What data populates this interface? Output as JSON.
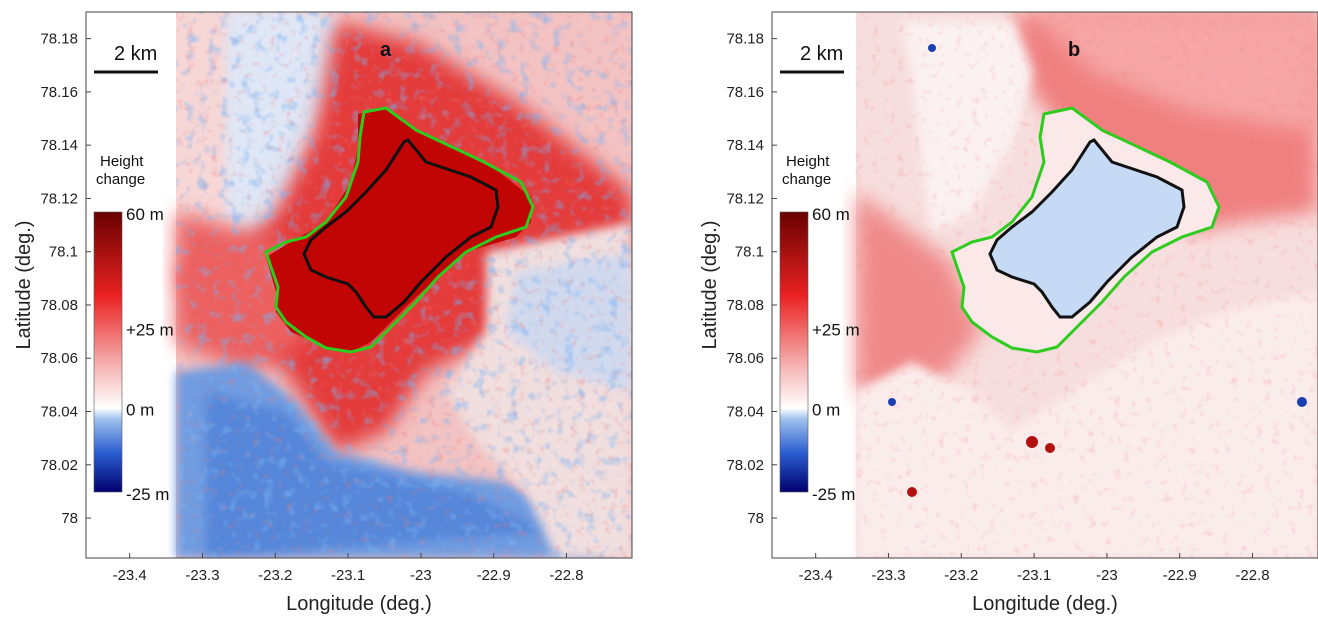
{
  "chart_data": [
    {
      "type": "heatmap",
      "panel": "a",
      "xlabel": "Longitude (deg.)",
      "ylabel": "Latitude (deg.)",
      "xticks": [
        -23.4,
        -23.3,
        -23.2,
        -23.1,
        -23.0,
        -22.9,
        -22.8
      ],
      "xtick_labels": [
        "-23.4",
        "-23.3",
        "-23.2",
        "-23.1",
        "-23",
        "-22.9",
        "-22.8"
      ],
      "yticks": [
        78.0,
        78.02,
        78.04,
        78.06,
        78.08,
        78.1,
        78.12,
        78.14,
        78.16,
        78.18
      ],
      "ytick_labels": [
        "78",
        "78.02",
        "78.04",
        "78.06",
        "78.08",
        "78.1",
        "78.12",
        "78.14",
        "78.16",
        "78.18"
      ],
      "xlim": [
        -23.46,
        -22.71
      ],
      "ylim": [
        77.985,
        78.19
      ],
      "scale_bar": "2 km",
      "colorbar": {
        "title_line1": "Height",
        "title_line2": "change",
        "range": [
          -25,
          60
        ],
        "labels": [
          {
            "value": 60,
            "text": "60 m"
          },
          {
            "value": 25,
            "text": "+25 m"
          },
          {
            "value": 0,
            "text": "0 m"
          },
          {
            "value": -25,
            "text": "-25 m"
          }
        ]
      },
      "outlines": [
        {
          "color": "#2ecc1f",
          "name": ""
        },
        {
          "color": "#111111",
          "name": ""
        }
      ]
    },
    {
      "type": "heatmap",
      "panel": "b",
      "xlabel": "Longitude (deg.)",
      "ylabel": "Latitude (deg.)",
      "xticks": [
        -23.4,
        -23.3,
        -23.2,
        -23.1,
        -23.0,
        -22.9,
        -22.8
      ],
      "xtick_labels": [
        "-23.4",
        "-23.3",
        "-23.2",
        "-23.1",
        "-23",
        "-22.9",
        "-22.8"
      ],
      "yticks": [
        78.0,
        78.02,
        78.04,
        78.06,
        78.08,
        78.1,
        78.12,
        78.14,
        78.16,
        78.18
      ],
      "ytick_labels": [
        "78",
        "78.02",
        "78.04",
        "78.06",
        "78.08",
        "78.1",
        "78.12",
        "78.14",
        "78.16",
        "78.18"
      ],
      "xlim": [
        -23.46,
        -22.71
      ],
      "ylim": [
        77.985,
        78.19
      ],
      "scale_bar": "2 km",
      "colorbar": {
        "title_line1": "Height",
        "title_line2": "change",
        "range": [
          -25,
          60
        ],
        "labels": [
          {
            "value": 60,
            "text": "60 m"
          },
          {
            "value": 25,
            "text": "+25 m"
          },
          {
            "value": 0,
            "text": "0 m"
          },
          {
            "value": -25,
            "text": "-25 m"
          }
        ]
      },
      "outlines": [
        {
          "color": "#2ecc1f",
          "name": ""
        },
        {
          "color": "#111111",
          "name": ""
        }
      ]
    }
  ],
  "colors": {
    "strong_red": "#b30000",
    "red": "#e8262a",
    "light_red": "#f4b8b8",
    "white": "#ffffff",
    "light_blue": "#b9d2f2",
    "blue": "#3a78d8",
    "navy": "#00007a",
    "green_outline": "#2ecc1f",
    "black_outline": "#111111"
  }
}
